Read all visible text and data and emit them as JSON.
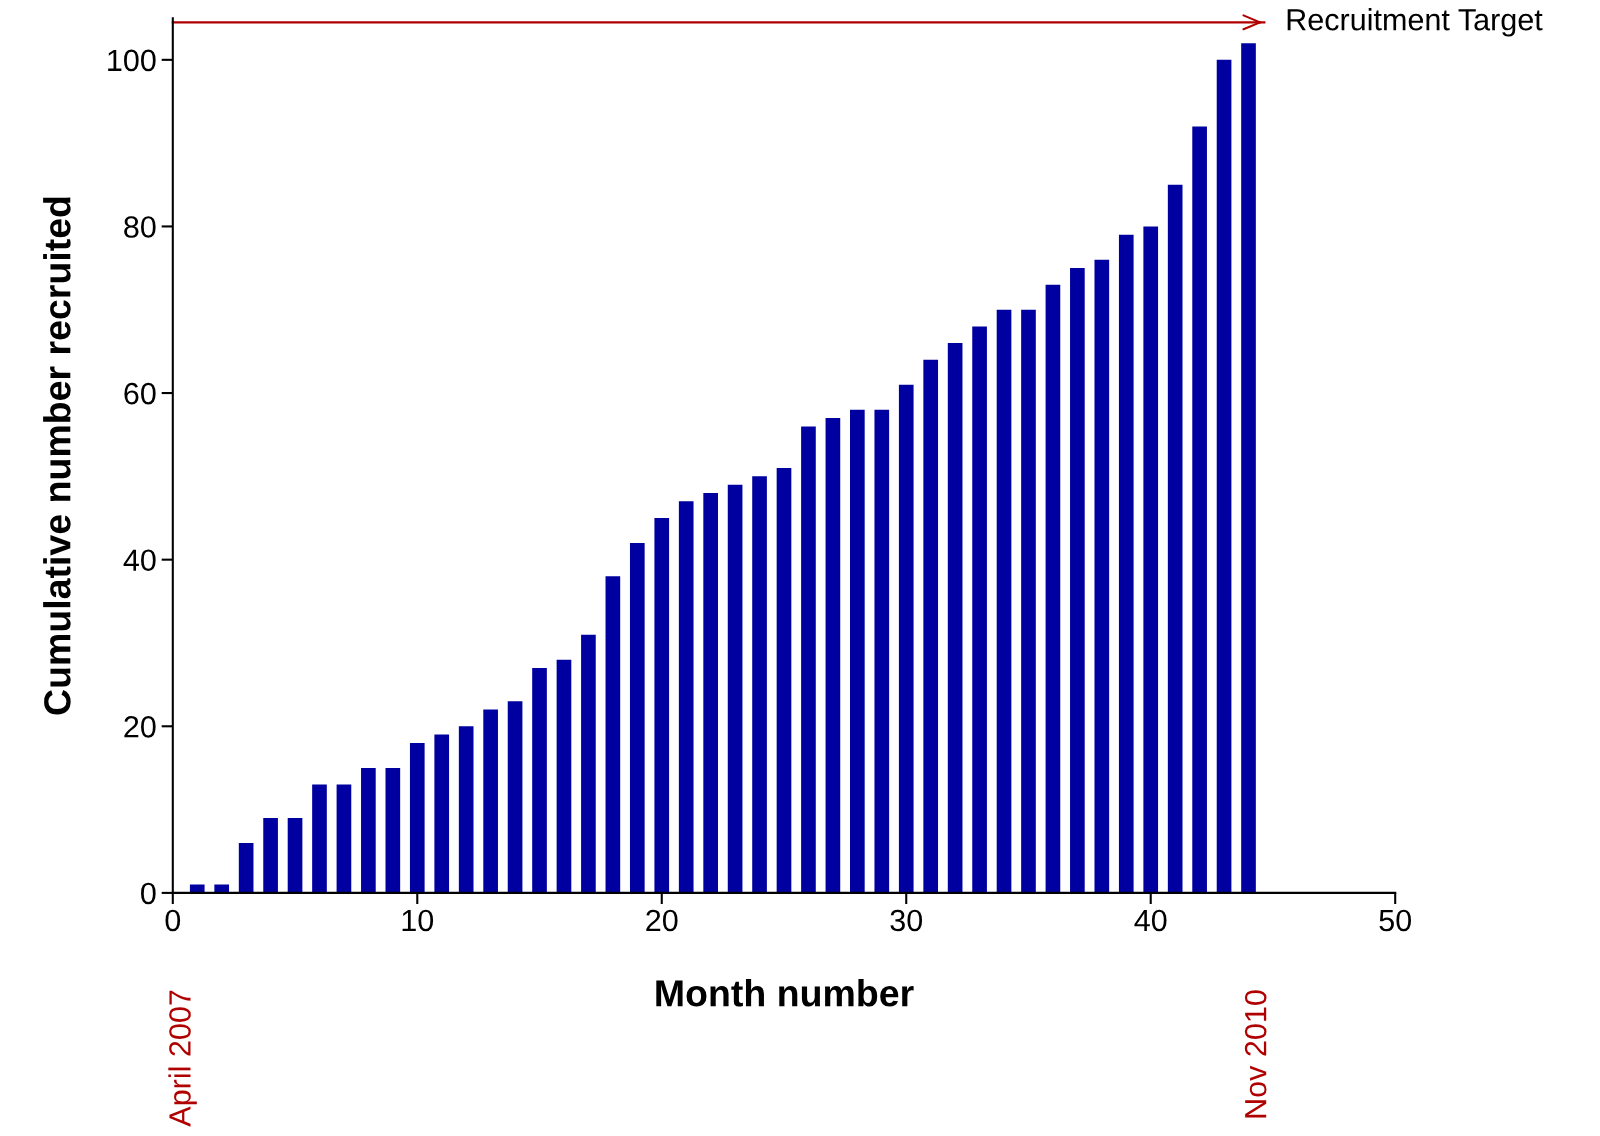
{
  "chart_data": {
    "type": "bar",
    "xlabel": "Month number",
    "ylabel": "Cumulative number recruited",
    "x": [
      1,
      2,
      3,
      4,
      5,
      6,
      7,
      8,
      9,
      10,
      11,
      12,
      13,
      14,
      15,
      16,
      17,
      18,
      19,
      20,
      21,
      22,
      23,
      24,
      25,
      26,
      27,
      28,
      29,
      30,
      31,
      32,
      33,
      34,
      35,
      36,
      37,
      38,
      39,
      40,
      41,
      42,
      43,
      44
    ],
    "values": [
      1,
      1,
      6,
      9,
      9,
      13,
      13,
      15,
      15,
      18,
      19,
      20,
      22,
      23,
      27,
      28,
      31,
      38,
      42,
      45,
      47,
      48,
      49,
      50,
      51,
      56,
      57,
      58,
      58,
      61,
      64,
      66,
      68,
      70,
      70,
      73,
      75,
      76,
      79,
      80,
      85,
      92,
      100,
      102
    ],
    "color": "#0000a0",
    "xlim": [
      0,
      50
    ],
    "xticks": [
      0,
      10,
      20,
      30,
      40,
      50
    ],
    "ylim": [
      0,
      105
    ],
    "yticks": [
      0,
      20,
      40,
      60,
      80,
      100
    ],
    "grid": false,
    "ref_lines": [
      {
        "axis": "y",
        "value": 104.5,
        "label": "Recruitment Target",
        "color": "#b00000"
      }
    ],
    "annotations": [
      "April 2007",
      "Nov 2010"
    ]
  }
}
